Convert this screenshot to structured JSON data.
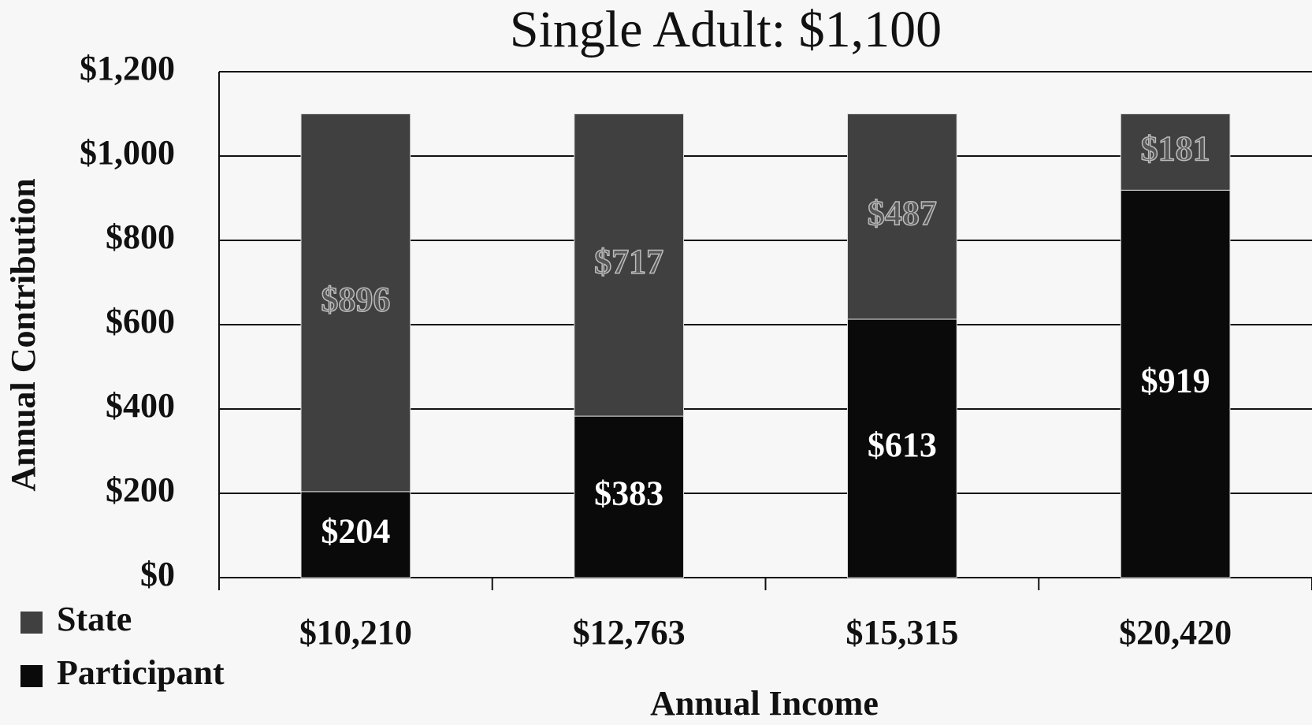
{
  "chart_data": {
    "type": "stacked_bar",
    "title": "Single Adult: $1,100",
    "x_label": "Annual Income",
    "y_label": "Annual Contribution",
    "categories": [
      "$10,210",
      "$12,763",
      "$15,315",
      "$20,420"
    ],
    "series": [
      {
        "name": "Participant",
        "color": "#0a0a0a",
        "values": [
          204,
          383,
          613,
          919
        ],
        "value_labels": [
          "$204",
          "$383",
          "$613",
          "$919"
        ]
      },
      {
        "name": "State",
        "color": "#404040",
        "values": [
          896,
          717,
          487,
          181
        ],
        "value_labels": [
          "$896",
          "$717",
          "$487",
          "$181"
        ]
      }
    ],
    "ylim": [
      0,
      1200
    ],
    "yticks": [
      {
        "value": 0,
        "label": "$0"
      },
      {
        "value": 200,
        "label": "$200"
      },
      {
        "value": 400,
        "label": "$400"
      },
      {
        "value": 600,
        "label": "$600"
      },
      {
        "value": 800,
        "label": "$800"
      },
      {
        "value": 1000,
        "label": "$1,000"
      },
      {
        "value": 1200,
        "label": "$1,200"
      }
    ],
    "grid": true,
    "legend": "bottom-left"
  }
}
